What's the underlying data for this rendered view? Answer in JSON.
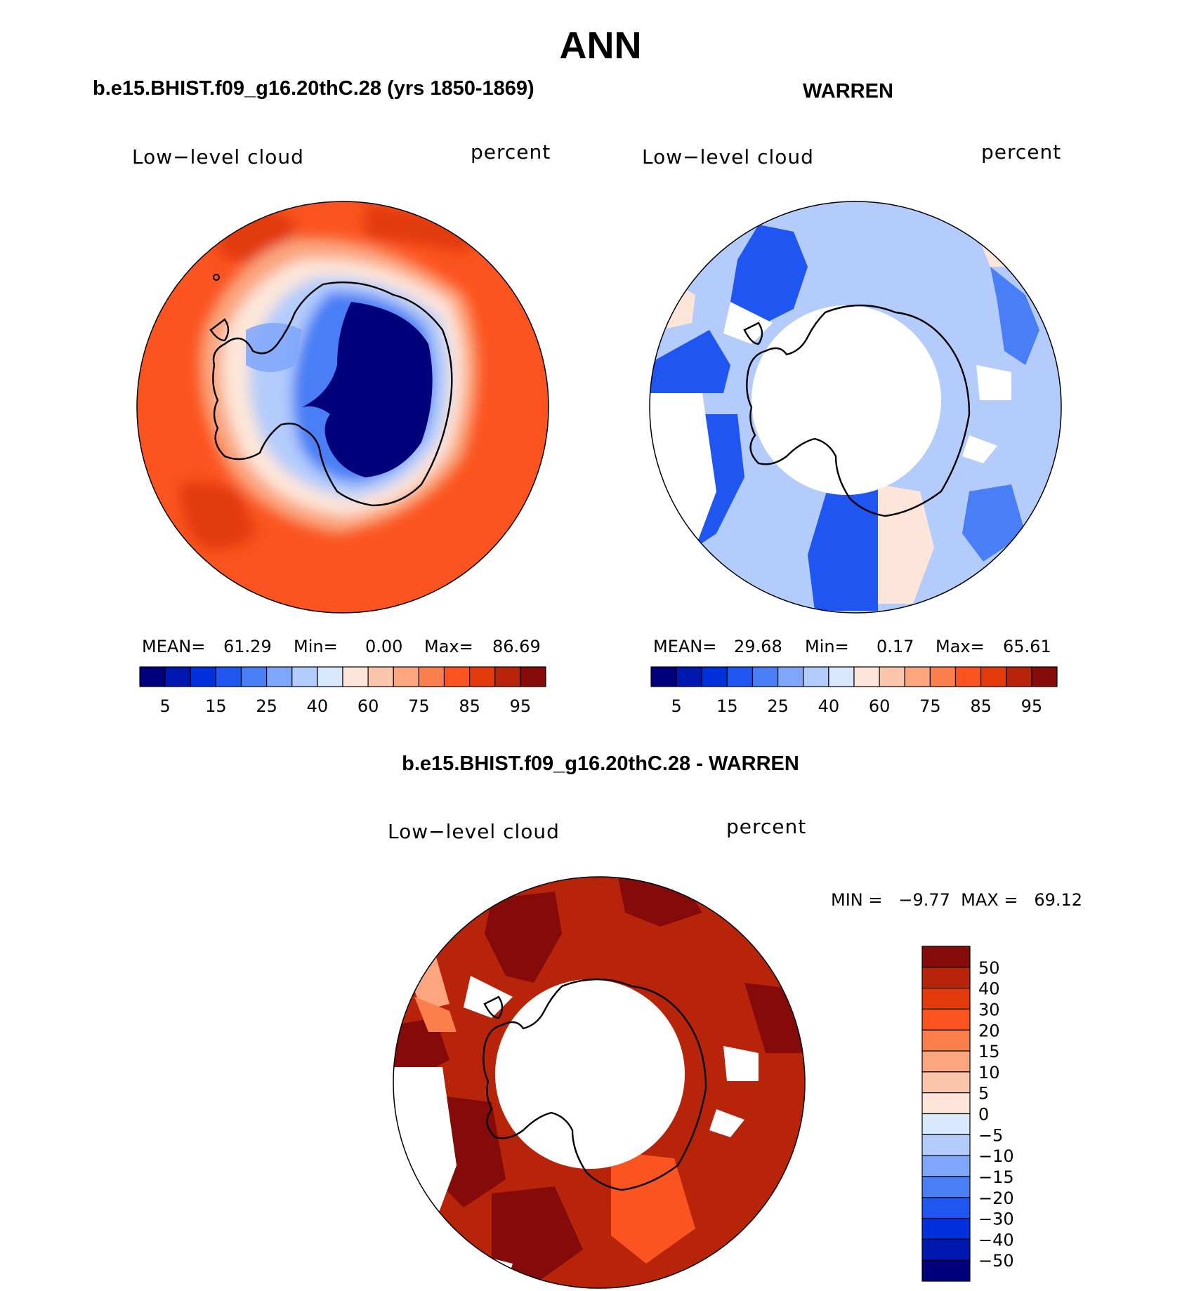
{
  "title": "ANN",
  "colors": [
    "#00007a",
    "#0018b0",
    "#0030dc",
    "#1f55f0",
    "#4a7ef6",
    "#7ea6fa",
    "#b3ccfb",
    "#d8e8fd",
    "#fde6d9",
    "#fcc6ad",
    "#fba67f",
    "#fb7e4d",
    "#fb5420",
    "#e23a0a",
    "#b8240a",
    "#850a0a"
  ],
  "panels": [
    {
      "case": "b.e15.BHIST.f09_g16.20thC.28 (yrs 1850-1869)",
      "left_label": "Low−level cloud",
      "right_label": "percent",
      "stats": {
        "mean_label": "MEAN=",
        "mean": "61.29",
        "min_label": "Min=",
        "min": "0.00",
        "max_label": "Max=",
        "max": "86.69"
      },
      "ticks": [
        "5",
        "15",
        "25",
        "40",
        "60",
        "75",
        "85",
        "95"
      ]
    },
    {
      "case": "WARREN",
      "left_label": "Low−level cloud",
      "right_label": "percent",
      "stats": {
        "mean_label": "MEAN=",
        "mean": "29.68",
        "min_label": "Min=",
        "min": "0.17",
        "max_label": "Max=",
        "max": "65.61"
      },
      "ticks": [
        "5",
        "15",
        "25",
        "40",
        "60",
        "75",
        "85",
        "95"
      ]
    }
  ],
  "diff": {
    "case": "b.e15.BHIST.f09_g16.20thC.28 - WARREN",
    "left_label": "Low−level cloud",
    "right_label": "percent",
    "minmax": "MIN =   −9.77  MAX =   69.12",
    "ticks": [
      "50",
      "40",
      "30",
      "20",
      "15",
      "10",
      "5",
      "0",
      "−5",
      "−10",
      "−15",
      "−20",
      "−30",
      "−40",
      "−50"
    ]
  },
  "chart_data": [
    {
      "type": "heatmap",
      "title": "b.e15.BHIST.f09_g16.20thC.28 (yrs 1850-1869)",
      "variable": "Low−level cloud",
      "units": "percent",
      "mean": 61.29,
      "min": 0.0,
      "max": 86.69,
      "colorbar_levels": [
        5,
        10,
        15,
        20,
        25,
        30,
        40,
        50,
        60,
        70,
        75,
        80,
        85,
        90,
        95
      ]
    },
    {
      "type": "heatmap",
      "title": "WARREN",
      "variable": "Low−level cloud",
      "units": "percent",
      "mean": 29.68,
      "min": 0.17,
      "max": 65.61,
      "colorbar_levels": [
        5,
        10,
        15,
        20,
        25,
        30,
        40,
        50,
        60,
        70,
        75,
        80,
        85,
        90,
        95
      ]
    },
    {
      "type": "heatmap",
      "title": "b.e15.BHIST.f09_g16.20thC.28 - WARREN",
      "variable": "Low−level cloud",
      "units": "percent",
      "min": -9.77,
      "max": 69.12,
      "colorbar_levels": [
        -50,
        -40,
        -30,
        -20,
        -15,
        -10,
        -5,
        0,
        5,
        10,
        15,
        20,
        30,
        40,
        50
      ]
    }
  ]
}
